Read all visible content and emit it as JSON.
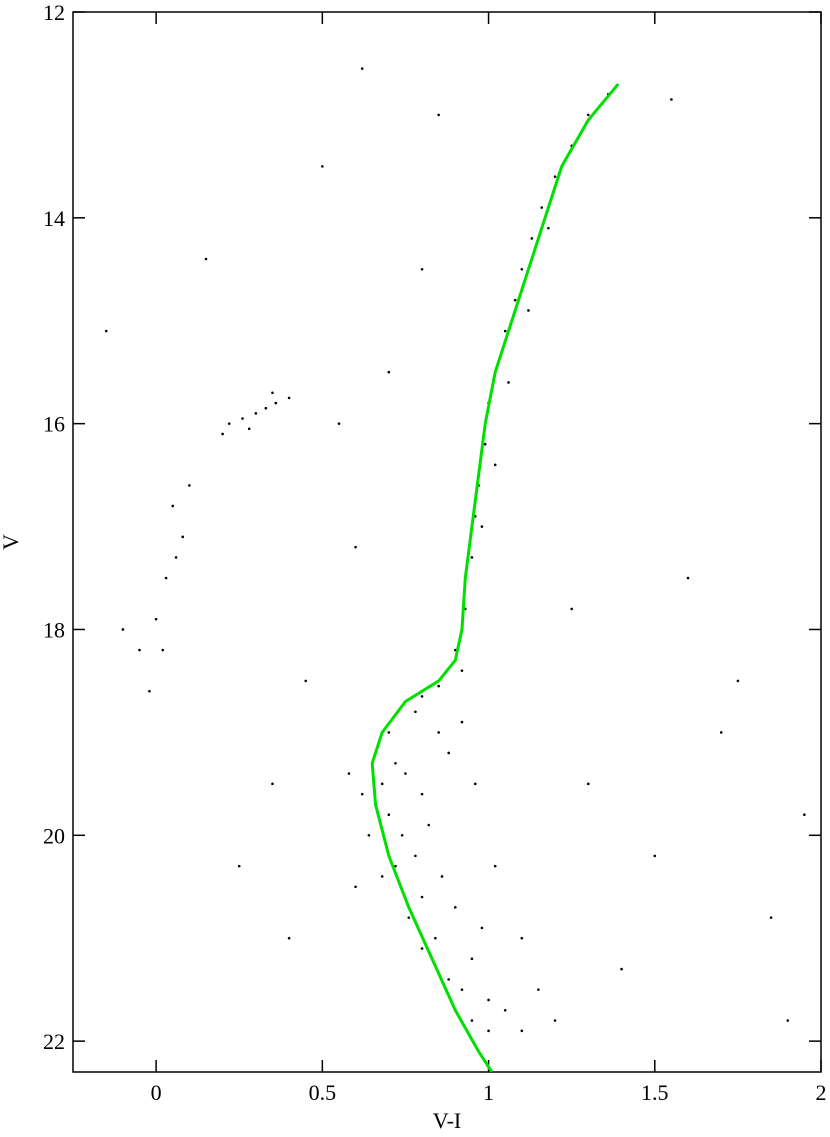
{
  "chart_data": {
    "type": "scatter",
    "x_label": "V-I",
    "y_label": "V",
    "xlim": [
      -0.25,
      2
    ],
    "ylim": [
      22.3,
      12
    ],
    "xticks": [
      0,
      0.5,
      1,
      1.5,
      2
    ],
    "yticks": [
      12,
      14,
      16,
      18,
      20,
      22
    ],
    "series": [
      {
        "mode": "markers",
        "color": "#000000",
        "x": [
          0.7,
          0.66,
          0.72,
          0.68,
          0.75,
          0.8,
          0.7,
          0.74,
          0.82,
          0.78,
          0.72,
          0.86,
          0.8,
          0.76,
          0.9,
          0.84,
          0.8,
          0.95,
          0.88,
          0.92,
          1.0,
          0.95,
          1.05,
          1.0,
          1.1,
          0.62,
          0.64,
          0.68,
          0.88,
          0.85,
          0.92,
          0.78,
          0.96,
          1.02,
          1.1,
          1.15,
          0.6,
          0.58,
          0.98,
          1.2,
          0.85,
          0.8,
          0.92,
          0.9,
          0.93,
          0.95,
          0.96,
          0.97,
          0.99,
          1.0,
          1.03,
          1.05,
          1.08,
          1.1,
          1.13,
          1.16,
          1.2,
          1.25,
          1.3,
          1.36,
          0.98,
          1.02,
          1.06,
          1.12,
          1.18,
          0.22,
          0.26,
          0.3,
          0.33,
          0.36,
          0.4,
          0.28,
          0.35,
          0.2,
          0.05,
          0.08,
          0.03,
          0,
          -0.05,
          0.06,
          -0.02,
          0.1,
          0.02,
          0.55,
          0.7,
          0.6,
          0.45,
          0.35,
          0.25,
          0.4,
          1.3,
          1.5,
          1.7,
          1.85,
          1.6,
          1.75,
          1.4,
          1.95,
          0.62,
          0.85,
          1.55,
          -0.15,
          -0.1,
          0.15,
          0.8,
          1.9,
          1.25,
          0.5
        ],
        "values": [
          19.0,
          19.2,
          19.3,
          19.5,
          19.4,
          19.6,
          19.8,
          20.0,
          19.9,
          20.2,
          20.3,
          20.4,
          20.6,
          20.8,
          20.7,
          21.0,
          21.1,
          21.2,
          21.4,
          21.5,
          21.6,
          21.8,
          21.7,
          21.9,
          21.9,
          19.6,
          20.0,
          20.4,
          19.2,
          19.0,
          18.9,
          18.8,
          19.5,
          20.3,
          21.0,
          21.5,
          20.5,
          19.4,
          20.9,
          21.8,
          18.55,
          18.65,
          18.4,
          18.2,
          17.8,
          17.3,
          16.9,
          16.6,
          16.2,
          15.8,
          15.4,
          15.1,
          14.8,
          14.5,
          14.2,
          13.9,
          13.6,
          13.3,
          13.0,
          12.8,
          17.0,
          16.4,
          15.6,
          14.9,
          14.1,
          16.0,
          15.95,
          15.9,
          15.85,
          15.8,
          15.75,
          16.05,
          15.7,
          16.1,
          16.8,
          17.1,
          17.5,
          17.9,
          18.2,
          17.3,
          18.6,
          16.6,
          18.2,
          16.0,
          15.5,
          17.2,
          18.5,
          19.5,
          20.3,
          21.0,
          19.5,
          20.2,
          19.0,
          20.8,
          17.5,
          18.5,
          21.3,
          19.8,
          12.55,
          13.0,
          12.85,
          15.1,
          18.0,
          14.4,
          14.5,
          21.8,
          17.8,
          13.5
        ]
      },
      {
        "mode": "line",
        "color": "#00e000",
        "x": [
          1.39,
          1.3,
          1.22,
          1.17,
          1.12,
          1.07,
          1.02,
          0.99,
          0.97,
          0.95,
          0.93,
          0.92,
          0.9,
          0.85,
          0.75,
          0.68,
          0.65,
          0.66,
          0.7,
          0.76,
          0.83,
          0.9,
          0.97,
          1.01
        ],
        "values": [
          12.7,
          13.05,
          13.5,
          14.0,
          14.5,
          15.0,
          15.5,
          16.0,
          16.5,
          17.0,
          17.5,
          18.0,
          18.3,
          18.5,
          18.7,
          19.0,
          19.3,
          19.7,
          20.2,
          20.7,
          21.2,
          21.7,
          22.1,
          22.3
        ]
      }
    ]
  }
}
